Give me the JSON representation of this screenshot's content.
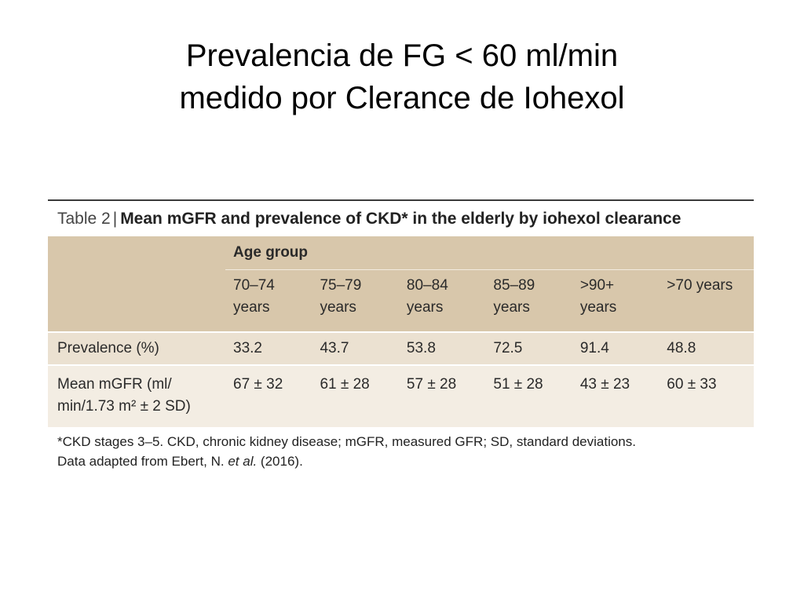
{
  "slide": {
    "title_line1": "Prevalencia de FG < 60 ml/min",
    "title_line2": "medido por Clerance de Iohexol"
  },
  "table": {
    "caption_label": "Table 2",
    "caption_sep": "|",
    "caption_title": "Mean mGFR and prevalence of CKD* in the elderly by iohexol clearance",
    "group_header": "Age group",
    "age_groups": [
      {
        "line1": "70–74",
        "line2": "years"
      },
      {
        "line1": "75–79",
        "line2": "years"
      },
      {
        "line1": "80–84",
        "line2": "years"
      },
      {
        "line1": "85–89",
        "line2": "years"
      },
      {
        "line1": ">90+",
        "line2": "years"
      },
      {
        "line1": ">70 years",
        "line2": ""
      }
    ],
    "rows": [
      {
        "label": "Prevalence (%)",
        "label_line2": "",
        "values": [
          "33.2",
          "43.7",
          "53.8",
          "72.5",
          "91.4",
          "48.8"
        ]
      },
      {
        "label": "Mean mGFR (ml/",
        "label_line2": "min/1.73 m² ± 2 SD)",
        "values": [
          "67 ± 32",
          "61 ± 28",
          "57 ± 28",
          "51 ± 28",
          "43 ± 23",
          "60 ± 33"
        ]
      }
    ],
    "footnote_line1": "*CKD stages 3–5. CKD, chronic kidney disease; mGFR, measured GFR; SD, standard deviations.",
    "footnote_line2_prefix": "Data adapted from Ebert, N. ",
    "footnote_line2_italic": "et al.",
    "footnote_line2_suffix": " (2016)."
  },
  "colors": {
    "header_bg": "#d8c7ab",
    "row_alt_1": "#ebe1d1",
    "row_alt_2": "#f3ede3"
  }
}
